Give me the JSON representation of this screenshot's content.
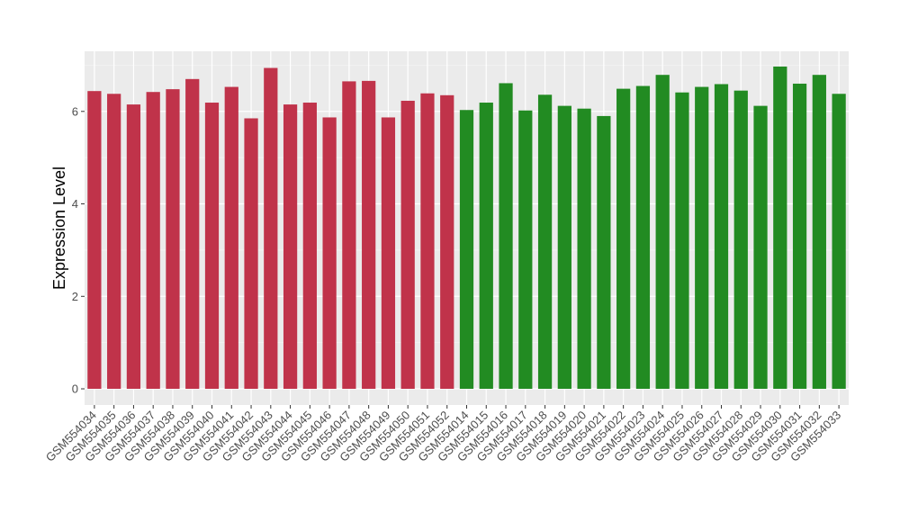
{
  "chart_data": {
    "type": "bar",
    "title": "",
    "xlabel": "",
    "ylabel": "Expression Level",
    "ylim": [
      -0.35,
      7.3
    ],
    "yticks": [
      0,
      2,
      4,
      6
    ],
    "grid": true,
    "legend": "none",
    "categories": [
      "GSM554034",
      "GSM554035",
      "GSM554036",
      "GSM554037",
      "GSM554038",
      "GSM554039",
      "GSM554040",
      "GSM554041",
      "GSM554042",
      "GSM554043",
      "GSM554044",
      "GSM554045",
      "GSM554046",
      "GSM554047",
      "GSM554048",
      "GSM554049",
      "GSM554050",
      "GSM554051",
      "GSM554052",
      "GSM554014",
      "GSM554015",
      "GSM554016",
      "GSM554017",
      "GSM554018",
      "GSM554019",
      "GSM554020",
      "GSM554021",
      "GSM554022",
      "GSM554023",
      "GSM554024",
      "GSM554025",
      "GSM554026",
      "GSM554027",
      "GSM554028",
      "GSM554029",
      "GSM554030",
      "GSM554031",
      "GSM554032",
      "GSM554033"
    ],
    "values": [
      6.44,
      6.38,
      6.15,
      6.42,
      6.48,
      6.7,
      6.19,
      6.53,
      5.85,
      6.94,
      6.15,
      6.19,
      5.87,
      6.65,
      6.66,
      5.87,
      6.23,
      6.39,
      6.35,
      6.03,
      6.19,
      6.61,
      6.02,
      6.36,
      6.12,
      6.06,
      5.9,
      6.49,
      6.55,
      6.79,
      6.41,
      6.53,
      6.59,
      6.45,
      6.12,
      6.97,
      6.6,
      6.79,
      6.38
    ],
    "group_sizes": [
      19,
      20
    ],
    "group_colors": [
      "#c0334a",
      "#228b22"
    ]
  },
  "colors": {
    "panel_background": "#ebebeb",
    "grid_major": "#ffffff",
    "grid_minor": "#f5f5f5",
    "tick_text": "#4d4d4d",
    "axis_title": "#000000"
  }
}
